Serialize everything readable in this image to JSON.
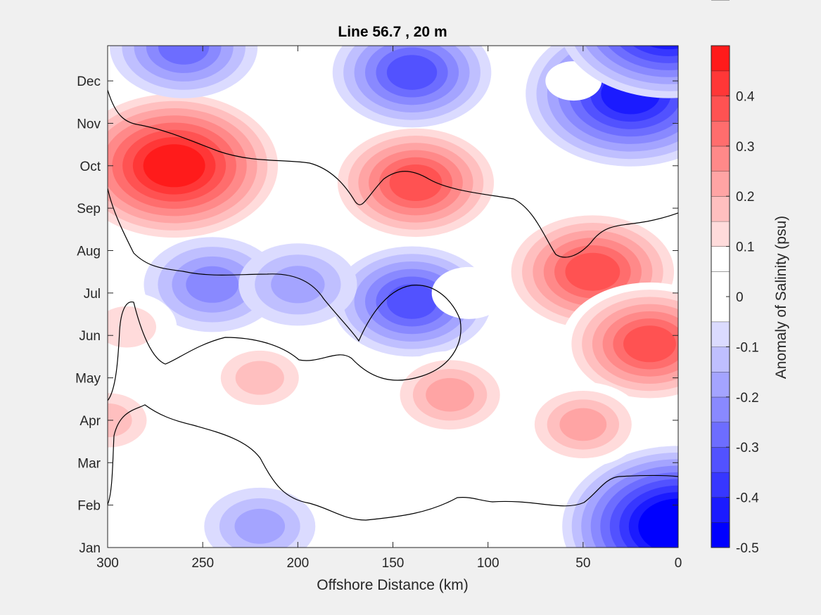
{
  "chart_data": {
    "type": "heatmap",
    "title": "Line 56.7 , 20 m",
    "xlabel": "Offshore Distance (km)",
    "ylabel": "",
    "xlim": [
      300,
      0
    ],
    "x_reversed": true,
    "x_ticks": [
      300,
      250,
      200,
      150,
      100,
      50,
      0
    ],
    "y_ticks": [
      "Jan",
      "Feb",
      "Mar",
      "Apr",
      "May",
      "Jun",
      "Jul",
      "Aug",
      "Sep",
      "Oct",
      "Nov",
      "Dec"
    ],
    "colorbar": {
      "label": "Anomaly of Salinity (psu)",
      "range": [
        -0.5,
        0.5
      ],
      "ticks": [
        -0.5,
        -0.4,
        -0.3,
        -0.2,
        -0.1,
        0,
        0.1,
        0.2,
        0.3,
        0.4
      ],
      "levels": [
        -0.5,
        -0.45,
        -0.4,
        -0.35,
        -0.3,
        -0.25,
        -0.2,
        -0.15,
        -0.1,
        -0.05,
        0.05,
        0.1,
        0.15,
        0.2,
        0.25,
        0.3,
        0.35,
        0.4,
        0.45,
        0.5
      ],
      "colors": [
        "#0000ff",
        "#1b1bff",
        "#3737ff",
        "#5252ff",
        "#6d6dff",
        "#8989ff",
        "#a4a4ff",
        "#bfbfff",
        "#dbdbff",
        "#ffffff",
        "#ffffff",
        "#ffdbdb",
        "#ffbfbf",
        "#ffa4a4",
        "#ff8989",
        "#ff6d6d",
        "#ff5252",
        "#ff3737",
        "#ff1b1b",
        "#ff0000"
      ]
    },
    "zero_contour": true,
    "features": [
      {
        "x": 265,
        "month": 9.0,
        "value": 0.47
      },
      {
        "x": 138,
        "month": 8.6,
        "value": 0.33
      },
      {
        "x": 45,
        "month": 6.5,
        "value": 0.35
      },
      {
        "x": 15,
        "month": 4.8,
        "value": 0.33
      },
      {
        "x": 245,
        "month": 6.2,
        "value": -0.22
      },
      {
        "x": 140,
        "month": 5.8,
        "value": -0.28
      },
      {
        "x": 200,
        "month": 6.2,
        "value": -0.17
      },
      {
        "x": 25,
        "month": 10.7,
        "value": -0.42
      },
      {
        "x": 55,
        "month": 11.0,
        "value": 0.0
      },
      {
        "x": 0,
        "month": 0.5,
        "value": -0.48
      },
      {
        "x": 5,
        "month": 12.4,
        "value": -0.45
      },
      {
        "x": 140,
        "month": 11.2,
        "value": -0.28
      },
      {
        "x": 260,
        "month": 11.8,
        "value": -0.25
      },
      {
        "x": 220,
        "month": 0.5,
        "value": -0.15
      },
      {
        "x": 290,
        "month": 5.2,
        "value": 0.12
      },
      {
        "x": 120,
        "month": 3.6,
        "value": 0.19
      },
      {
        "x": 220,
        "month": 4.0,
        "value": 0.14
      },
      {
        "x": 50,
        "month": 2.9,
        "value": 0.18
      },
      {
        "x": 110,
        "month": 6.0,
        "value": 0.05
      },
      {
        "x": 300,
        "month": 3.0,
        "value": 0.14
      }
    ]
  }
}
